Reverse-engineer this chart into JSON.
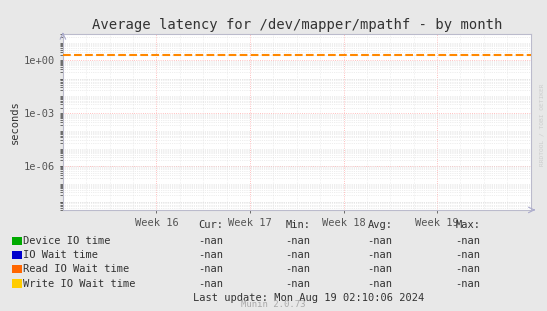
{
  "title": "Average latency for /dev/mapper/mpathf - by month",
  "ylabel": "seconds",
  "bg_color": "#e8e8e8",
  "plot_bg_color": "#ffffff",
  "grid_major_color": "#ffaaaa",
  "grid_minor_color": "#dddddd",
  "x_ticks_labels": [
    "Week 16",
    "Week 17",
    "Week 18",
    "Week 19"
  ],
  "x_tick_positions": [
    0.2,
    0.4,
    0.6,
    0.8
  ],
  "y_ticks": [
    1e-06,
    0.001,
    1.0
  ],
  "y_tick_labels": [
    "1e-06",
    "1e-03",
    "1e+00"
  ],
  "ylim": [
    3e-09,
    30.0
  ],
  "dashed_line_y": 2.0,
  "dashed_line_color": "#ff8800",
  "watermark": "RRDTOOL / TOBI OETIKER",
  "munin_text": "Munin 2.0.73",
  "last_update": "Last update: Mon Aug 19 02:10:06 2024",
  "legend_entries": [
    {
      "label": "Device IO time",
      "color": "#00aa00"
    },
    {
      "label": "IO Wait time",
      "color": "#0000cc"
    },
    {
      "label": "Read IO Wait time",
      "color": "#ff6600"
    },
    {
      "label": "Write IO Wait time",
      "color": "#ffcc00"
    }
  ],
  "legend_col_headers": [
    "Cur:",
    "Min:",
    "Avg:",
    "Max:"
  ],
  "legend_value": "-nan",
  "title_fontsize": 10,
  "axis_label_fontsize": 7.5,
  "tick_fontsize": 7.5,
  "legend_fontsize": 7.5
}
